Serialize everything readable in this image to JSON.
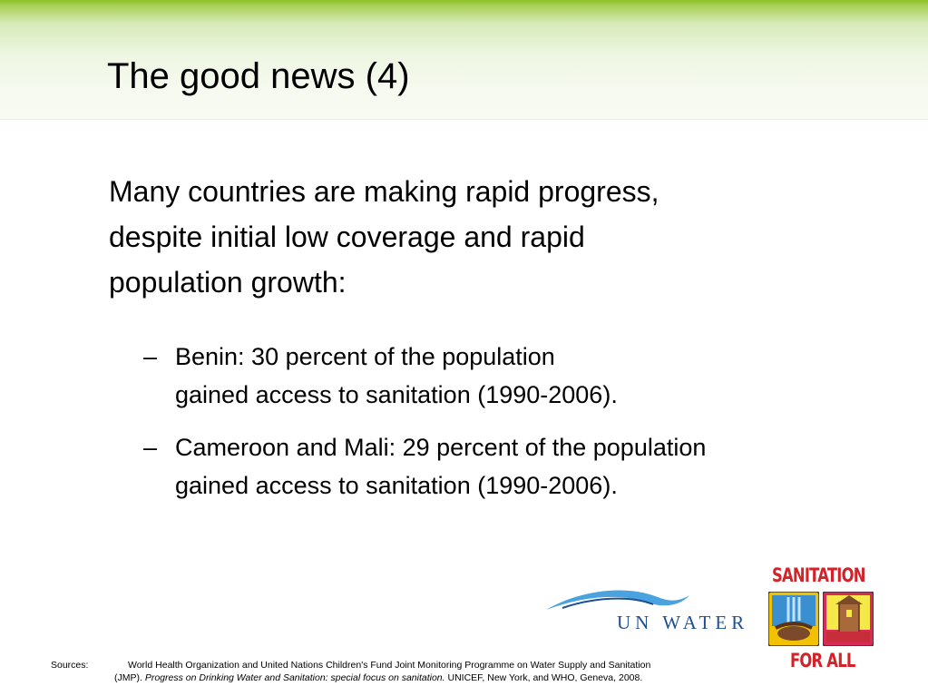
{
  "slide": {
    "title": "The good news (4)",
    "intro_lines": [
      "Many countries are making rapid progress,",
      "despite initial low coverage and rapid",
      "population growth:"
    ],
    "bullets": [
      {
        "dash": "–",
        "lines": [
          "Benin: 30 percent of the population",
          "gained access to sanitation (1990-2006)."
        ]
      },
      {
        "dash": "–",
        "lines": [
          "Cameroon and Mali: 29 percent of the population",
          "gained access to sanitation (1990-2006)."
        ]
      }
    ]
  },
  "logos": {
    "un_water": {
      "text": "UN WATER",
      "color": "#1d4f91"
    },
    "sanitation_for_all": {
      "top": "SANITATION",
      "bottom": "FOR ALL",
      "color": "#d2232a"
    }
  },
  "sources": {
    "label": "Sources:",
    "line1": "World Health Organization and United Nations Children's Fund Joint Monitoring Programme on Water Supply and Sanitation",
    "line2_plain_start": "(JMP). ",
    "line2_italic": "Progress on Drinking Water and Sanitation: special focus on sanitation.",
    "line2_plain_end": " UNICEF, New York, and WHO, Geneva, 2008."
  },
  "colors": {
    "header_green": "#8cbf26",
    "header_fade": "#f8fbf3"
  }
}
